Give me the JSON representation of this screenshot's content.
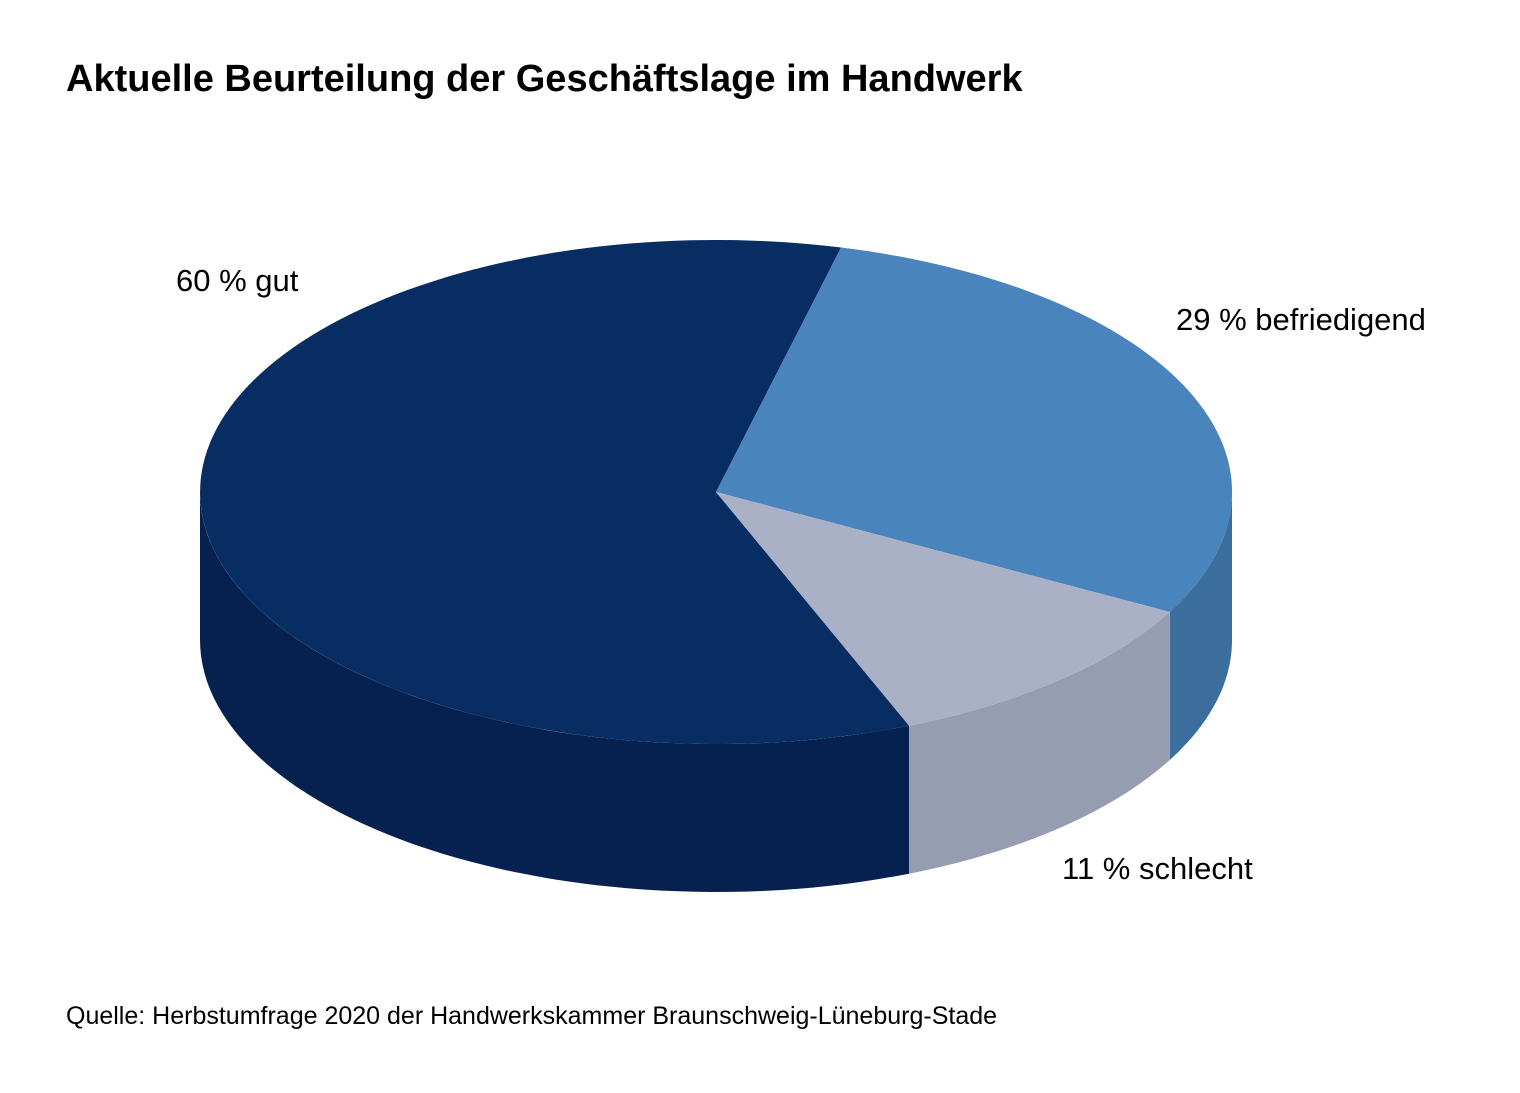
{
  "chart_data": {
    "type": "pie",
    "title": "Aktuelle Beurteilung der Geschäftslage im Handwerk",
    "slices": [
      {
        "label": "60 % gut",
        "name": "gut",
        "value": 60,
        "color": "#082d63",
        "side_color": "#062150"
      },
      {
        "label": "29 % befriedigend",
        "name": "befriedigend",
        "value": 29,
        "color": "#4a84bc",
        "side_color": "#3b6d9d"
      },
      {
        "label": "11 % schlecht",
        "name": "schlecht",
        "value": 11,
        "color": "#aab0c6",
        "side_color": "#979db1"
      }
    ],
    "style": "3d",
    "source": "Quelle: Herbstumfrage 2020 der Handwerkskammer Braunschweig-Lüneburg-Stade"
  }
}
